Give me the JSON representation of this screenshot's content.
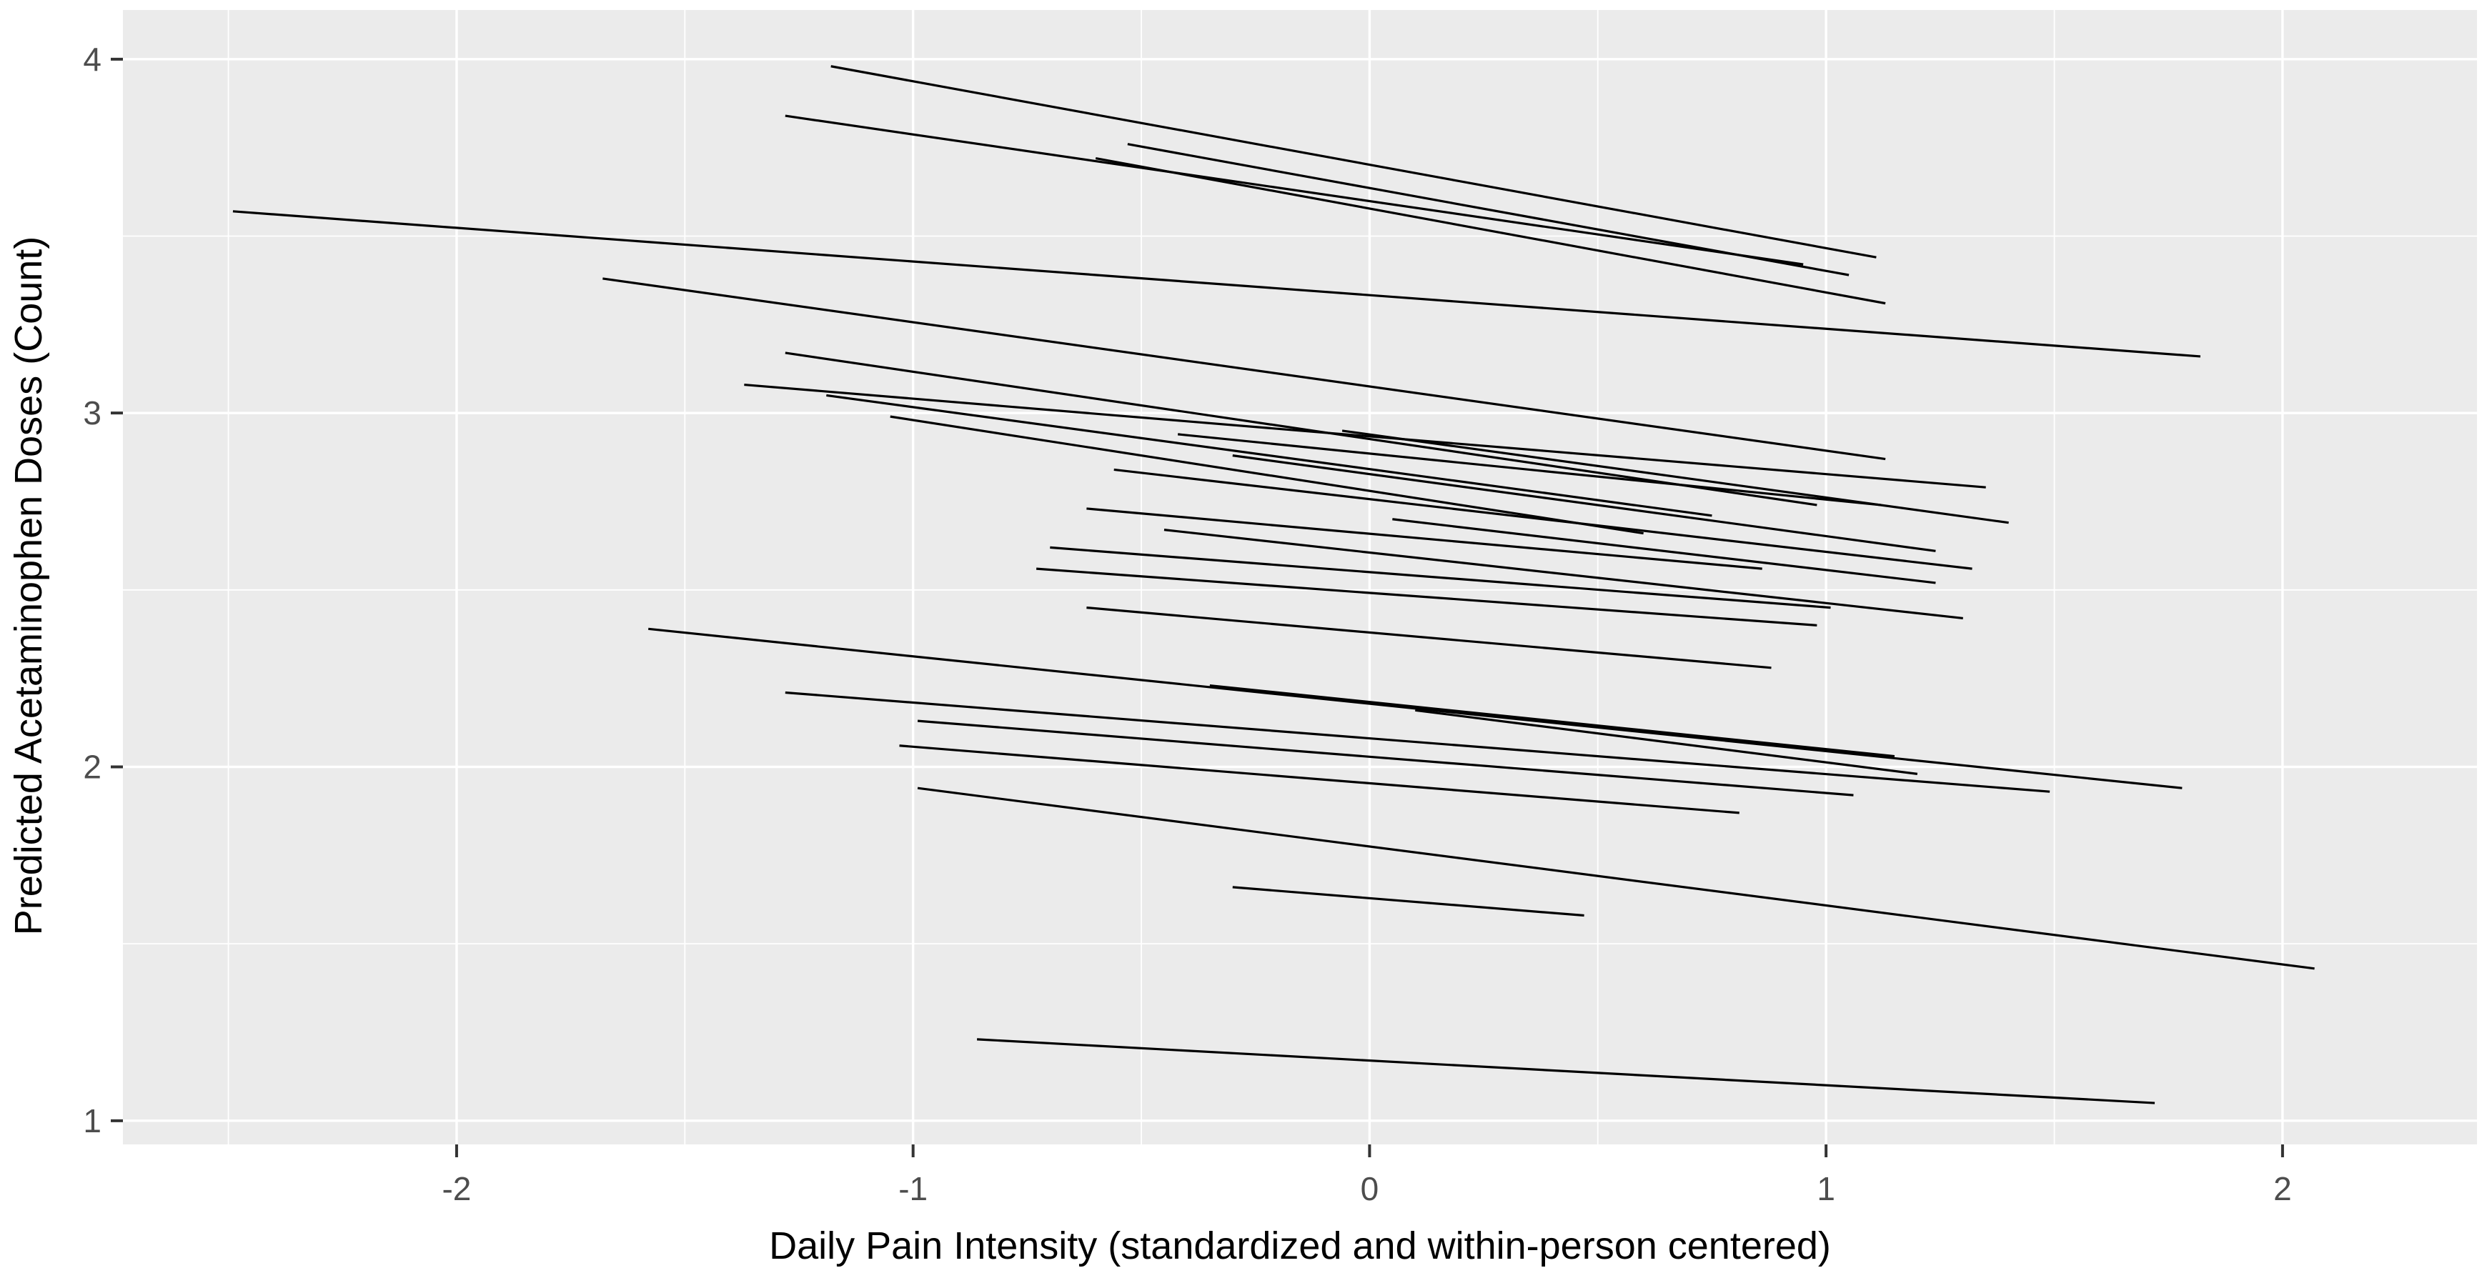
{
  "chart_data": {
    "type": "line",
    "subtype": "spaghetti-plot-individual-fitted-regression-lines",
    "title": "",
    "xlabel": "Daily Pain Intensity (standardized and within-person centered)",
    "ylabel": "Predicted Acetaminophen Doses (Count)",
    "x_ticks": [
      -2,
      -1,
      0,
      1,
      2
    ],
    "y_ticks": [
      1,
      2,
      3,
      4
    ],
    "x_minor_gridlines": [
      -2.5,
      -1.5,
      -0.5,
      0.5,
      1.5
    ],
    "y_minor_gridlines": [
      1.5,
      2.5,
      3.5
    ],
    "xlim": [
      -2.731,
      2.426
    ],
    "ylim": [
      0.933,
      4.139
    ],
    "grid": "major-and-minor-white-on-grey",
    "legend_position": "none",
    "theme": {
      "panel_background": "#EBEBEB",
      "gridline_color": "#FFFFFF",
      "line_color": "#000000",
      "tick_color": "#333333",
      "tick_label_color": "#4D4D4D",
      "axis_title_color": "#000000"
    },
    "segments": [
      {
        "x1": -1.18,
        "y1": 3.98,
        "x2": 1.11,
        "y2": 3.44
      },
      {
        "x1": -0.53,
        "y1": 3.76,
        "x2": 1.05,
        "y2": 3.39
      },
      {
        "x1": -1.28,
        "y1": 3.84,
        "x2": 0.95,
        "y2": 3.42
      },
      {
        "x1": -0.6,
        "y1": 3.72,
        "x2": 1.13,
        "y2": 3.31
      },
      {
        "x1": -2.49,
        "y1": 3.57,
        "x2": 1.82,
        "y2": 3.16
      },
      {
        "x1": -1.68,
        "y1": 3.38,
        "x2": 1.13,
        "y2": 2.87
      },
      {
        "x1": -1.28,
        "y1": 3.17,
        "x2": 0.98,
        "y2": 2.74
      },
      {
        "x1": -1.37,
        "y1": 3.08,
        "x2": 1.35,
        "y2": 2.79
      },
      {
        "x1": -1.19,
        "y1": 3.05,
        "x2": 0.75,
        "y2": 2.71
      },
      {
        "x1": -1.05,
        "y1": 2.99,
        "x2": 0.6,
        "y2": 2.66
      },
      {
        "x1": -0.56,
        "y1": 2.84,
        "x2": 1.32,
        "y2": 2.56
      },
      {
        "x1": -0.3,
        "y1": 2.88,
        "x2": 1.24,
        "y2": 2.61
      },
      {
        "x1": -0.06,
        "y1": 2.95,
        "x2": 1.4,
        "y2": 2.69
      },
      {
        "x1": -0.42,
        "y1": 2.94,
        "x2": 1.12,
        "y2": 2.74
      },
      {
        "x1": -0.62,
        "y1": 2.73,
        "x2": 0.86,
        "y2": 2.56
      },
      {
        "x1": 0.05,
        "y1": 2.7,
        "x2": 1.24,
        "y2": 2.52
      },
      {
        "x1": -0.7,
        "y1": 2.62,
        "x2": 1.01,
        "y2": 2.45
      },
      {
        "x1": -0.73,
        "y1": 2.56,
        "x2": 0.98,
        "y2": 2.4
      },
      {
        "x1": -0.45,
        "y1": 2.67,
        "x2": 1.3,
        "y2": 2.42
      },
      {
        "x1": -1.58,
        "y1": 2.39,
        "x2": 1.78,
        "y2": 1.94
      },
      {
        "x1": -1.28,
        "y1": 2.21,
        "x2": 1.49,
        "y2": 1.93
      },
      {
        "x1": -1.03,
        "y1": 2.06,
        "x2": 0.81,
        "y2": 1.87
      },
      {
        "x1": -0.99,
        "y1": 2.13,
        "x2": 1.06,
        "y2": 1.92
      },
      {
        "x1": -0.35,
        "y1": 2.23,
        "x2": 1.15,
        "y2": 2.03
      },
      {
        "x1": -0.62,
        "y1": 2.45,
        "x2": 0.88,
        "y2": 2.28
      },
      {
        "x1": 0.1,
        "y1": 2.16,
        "x2": 1.2,
        "y2": 1.98
      },
      {
        "x1": -0.99,
        "y1": 1.94,
        "x2": 2.07,
        "y2": 1.43
      },
      {
        "x1": -0.3,
        "y1": 1.66,
        "x2": 0.47,
        "y2": 1.58
      },
      {
        "x1": -0.86,
        "y1": 1.23,
        "x2": 1.72,
        "y2": 1.05
      }
    ]
  }
}
